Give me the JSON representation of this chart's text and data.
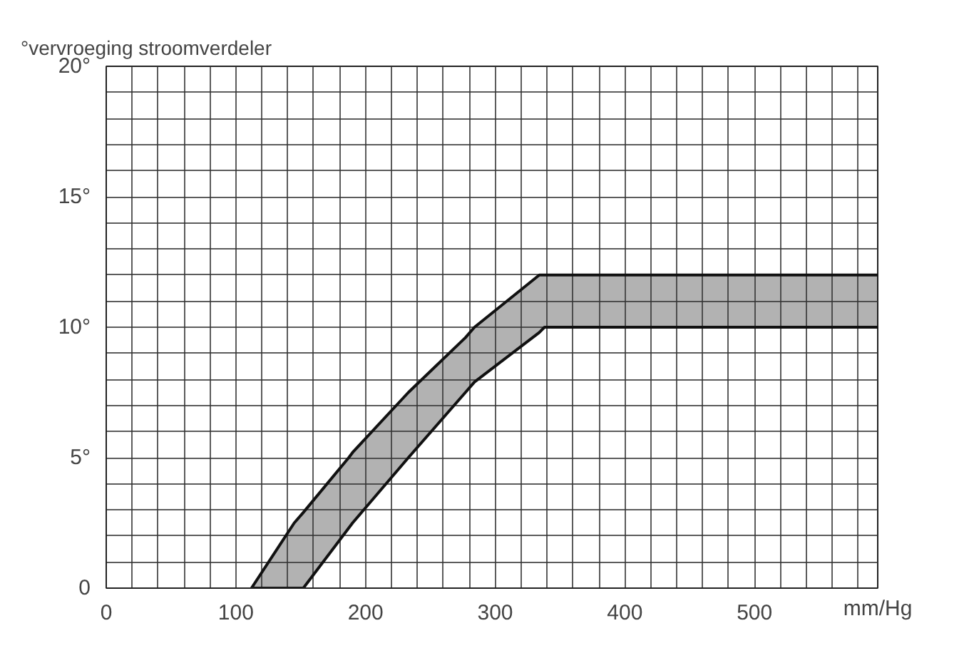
{
  "chart_data": {
    "type": "line",
    "title": "°vervroeging stroomverdeler",
    "xlabel": "mm/Hg",
    "xlim": [
      0,
      595
    ],
    "ylim": [
      0,
      20
    ],
    "xticks": [
      0,
      {
        "value": 20,
        "label": null
      },
      {
        "value": 40,
        "label": null
      },
      {
        "value": 60,
        "label": null
      },
      {
        "value": 80,
        "label": null
      },
      100,
      {
        "value": 120,
        "label": null
      },
      {
        "value": 140,
        "label": null
      },
      {
        "value": 160,
        "label": null
      },
      {
        "value": 180,
        "label": null
      },
      200,
      {
        "value": 220,
        "label": null
      },
      {
        "value": 240,
        "label": null
      },
      {
        "value": 260,
        "label": null
      },
      {
        "value": 280,
        "label": null
      },
      300,
      {
        "value": 320,
        "label": null
      },
      {
        "value": 340,
        "label": null
      },
      {
        "value": 360,
        "label": null
      },
      {
        "value": 380,
        "label": null
      },
      400,
      {
        "value": 420,
        "label": null
      },
      {
        "value": 440,
        "label": null
      },
      {
        "value": 460,
        "label": null
      },
      {
        "value": 480,
        "label": null
      },
      500,
      {
        "value": 520,
        "label": null
      },
      {
        "value": 540,
        "label": null
      },
      {
        "value": 560,
        "label": null
      },
      {
        "value": 580,
        "label": null
      }
    ],
    "yticks": [
      0,
      {
        "value": 1,
        "label": null
      },
      {
        "value": 2,
        "label": null
      },
      {
        "value": 3,
        "label": null
      },
      {
        "value": 4,
        "label": null
      },
      {
        "value": 5,
        "label": "5°"
      },
      {
        "value": 6,
        "label": null
      },
      {
        "value": 7,
        "label": null
      },
      {
        "value": 8,
        "label": null
      },
      {
        "value": 9,
        "label": null
      },
      {
        "value": 10,
        "label": "10°"
      },
      {
        "value": 11,
        "label": null
      },
      {
        "value": 12,
        "label": null
      },
      {
        "value": 13,
        "label": null
      },
      {
        "value": 14,
        "label": null
      },
      {
        "value": 15,
        "label": "15°"
      },
      {
        "value": 16,
        "label": null
      },
      {
        "value": 17,
        "label": null
      },
      {
        "value": 18,
        "label": null
      },
      {
        "value": 19,
        "label": null
      },
      {
        "value": 20,
        "label": "20°"
      }
    ],
    "grid": true,
    "series": [
      {
        "color": "#111111",
        "x": [
          112,
          145,
          152,
          187,
          190,
          233,
          277,
          284,
          334,
          338,
          595
        ],
        "values": [
          0,
          2.5,
          2.9,
          5,
          5.2,
          7.5,
          9.6,
          10,
          12,
          12,
          12
        ],
        "lower": [
          0,
          0,
          0,
          2.3,
          2.5,
          5,
          7.5,
          7.9,
          9.8,
          10,
          10
        ],
        "upper": [
          0,
          2.5,
          2.9,
          5,
          5.2,
          7.5,
          9.6,
          10,
          12,
          12,
          12
        ]
      },
      {
        "color": "#111111",
        "x": [
          112,
          145,
          152,
          187,
          190,
          233,
          277,
          284,
          334,
          338,
          595
        ],
        "values": [
          0,
          0,
          0,
          2.3,
          2.5,
          5,
          7.5,
          7.9,
          9.8,
          10,
          10
        ]
      }
    ]
  }
}
